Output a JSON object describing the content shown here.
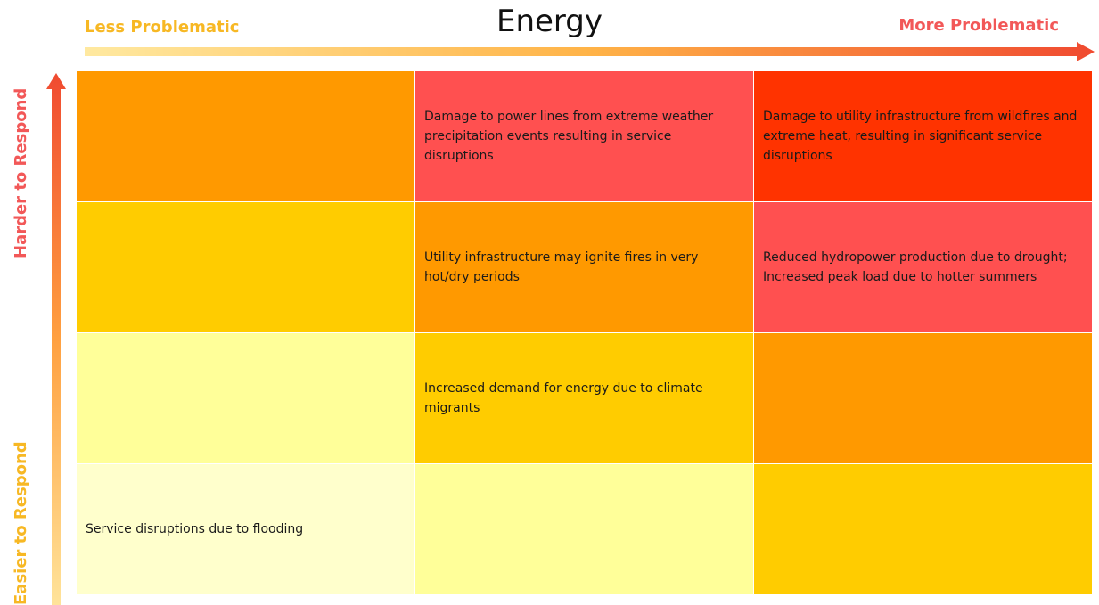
{
  "title": "Energy",
  "x_axis": {
    "low": "Less Problematic",
    "high": "More Problematic"
  },
  "y_axis": {
    "low": "Easier to Respond",
    "high": "Harder to Respond"
  },
  "grid": {
    "rows": [
      [
        {
          "color": "#ff9900"
        },
        {
          "color": "#ff5050",
          "text": "Damage to power lines from extreme weather precipitation events resulting in service disruptions"
        },
        {
          "color": "#ff3300",
          "text": "Damage to utility infrastructure from wildfires and extreme heat, resulting in significant service disruptions"
        }
      ],
      [
        {
          "color": "#ffcc00"
        },
        {
          "color": "#ff9900",
          "text": "Utility infrastructure may ignite fires in very hot/dry periods"
        },
        {
          "color": "#ff5050",
          "text": "Reduced hydropower production due to drought;\nIncreased peak load due to hotter summers"
        }
      ],
      [
        {
          "color": "#ffff99"
        },
        {
          "color": "#ffcc00",
          "text": "Increased demand for energy due to climate migrants"
        },
        {
          "color": "#ff9900"
        }
      ],
      [
        {
          "color": "#ffffcc",
          "text": "Service disruptions due to flooding"
        },
        {
          "color": "#ffff99"
        },
        {
          "color": "#ffcc00"
        }
      ]
    ]
  }
}
